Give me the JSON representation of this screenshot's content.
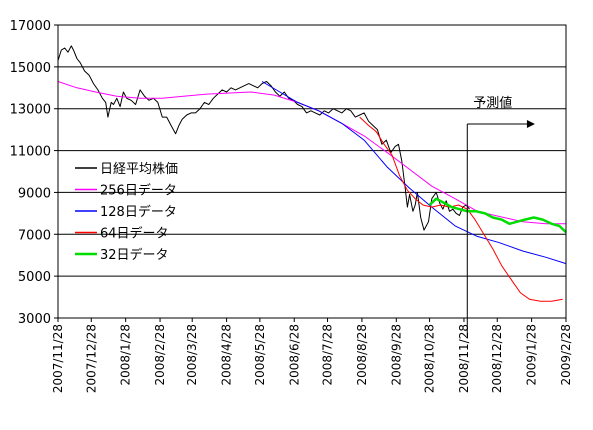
{
  "chart_data": {
    "type": "line",
    "ylim": [
      3000,
      17000
    ],
    "ytick_labels": [
      "3000",
      "5000",
      "7000",
      "9000",
      "11000",
      "13000",
      "15000",
      "17000"
    ],
    "ytick_values": [
      3000,
      5000,
      7000,
      9000,
      11000,
      13000,
      15000,
      17000
    ],
    "grid": "horizontal",
    "xtick_labels": [
      "2007/11/28",
      "2007/12/28",
      "2008/1/28",
      "2008/2/28",
      "2008/3/28",
      "2008/4/28",
      "2008/5/28",
      "2008/6/28",
      "2008/7/28",
      "2008/8/28",
      "2008/9/28",
      "2008/10/28",
      "2008/11/28",
      "2008/12/28",
      "2009/1/28",
      "2009/2/28"
    ],
    "xtick_values": [
      "2007-11-28",
      "2007-12-28",
      "2008-01-28",
      "2008-02-28",
      "2008-03-28",
      "2008-04-28",
      "2008-05-28",
      "2008-06-28",
      "2008-07-28",
      "2008-08-28",
      "2008-09-28",
      "2008-10-28",
      "2008-11-28",
      "2008-12-28",
      "2009-01-28",
      "2009-02-28"
    ],
    "xlim": [
      "2007-11-28",
      "2009-02-28"
    ],
    "legend_position": "left",
    "annotation": {
      "label": "予測値",
      "x": "2008-12-01",
      "arrow_to": "2009-01-31"
    },
    "series": [
      {
        "name": "日経平均株価",
        "color": "#000000",
        "x": [
          "2007-11-28",
          "2007-12-01",
          "2007-12-04",
          "2007-12-07",
          "2007-12-10",
          "2007-12-12",
          "2007-12-15",
          "2007-12-18",
          "2007-12-22",
          "2007-12-26",
          "2007-12-30",
          "2008-01-03",
          "2008-01-07",
          "2008-01-10",
          "2008-01-12",
          "2008-01-15",
          "2008-01-17",
          "2008-01-20",
          "2008-01-23",
          "2008-01-26",
          "2008-01-29",
          "2008-02-02",
          "2008-02-06",
          "2008-02-10",
          "2008-02-14",
          "2008-02-18",
          "2008-02-22",
          "2008-02-26",
          "2008-03-01",
          "2008-03-05",
          "2008-03-09",
          "2008-03-13",
          "2008-03-16",
          "2008-03-19",
          "2008-03-23",
          "2008-03-27",
          "2008-03-31",
          "2008-04-04",
          "2008-04-08",
          "2008-04-12",
          "2008-04-16",
          "2008-04-20",
          "2008-04-24",
          "2008-04-28",
          "2008-05-02",
          "2008-05-06",
          "2008-05-10",
          "2008-05-14",
          "2008-05-18",
          "2008-05-22",
          "2008-05-26",
          "2008-05-30",
          "2008-06-03",
          "2008-06-07",
          "2008-06-11",
          "2008-06-15",
          "2008-06-19",
          "2008-06-23",
          "2008-06-27",
          "2008-07-01",
          "2008-07-05",
          "2008-07-09",
          "2008-07-13",
          "2008-07-17",
          "2008-07-21",
          "2008-07-25",
          "2008-07-29",
          "2008-08-02",
          "2008-08-06",
          "2008-08-10",
          "2008-08-14",
          "2008-08-18",
          "2008-08-22",
          "2008-08-26",
          "2008-08-30",
          "2008-09-03",
          "2008-09-07",
          "2008-09-11",
          "2008-09-15",
          "2008-09-19",
          "2008-09-23",
          "2008-09-27",
          "2008-09-30",
          "2008-10-03",
          "2008-10-06",
          "2008-10-08",
          "2008-10-10",
          "2008-10-13",
          "2008-10-15",
          "2008-10-17",
          "2008-10-20",
          "2008-10-23",
          "2008-10-27",
          "2008-10-30",
          "2008-11-03",
          "2008-11-06",
          "2008-11-09",
          "2008-11-12",
          "2008-11-15",
          "2008-11-18",
          "2008-11-21",
          "2008-11-24",
          "2008-11-27",
          "2008-11-30",
          "2008-12-03"
        ],
        "values": [
          15300,
          15800,
          15900,
          15700,
          16000,
          15800,
          15400,
          15200,
          14800,
          14600,
          14200,
          13900,
          13500,
          13300,
          12600,
          13300,
          13200,
          13500,
          13100,
          13800,
          13500,
          13400,
          13200,
          13900,
          13600,
          13400,
          13500,
          13300,
          12600,
          12600,
          12200,
          11800,
          12200,
          12500,
          12700,
          12800,
          12800,
          13000,
          13300,
          13200,
          13500,
          13700,
          13900,
          13800,
          14000,
          13900,
          14000,
          14100,
          14200,
          14100,
          14000,
          14200,
          14300,
          14100,
          13800,
          13600,
          13800,
          13500,
          13400,
          13200,
          13100,
          12800,
          12900,
          12800,
          12700,
          12900,
          12800,
          13000,
          12900,
          12800,
          13000,
          12900,
          12600,
          12700,
          12800,
          12400,
          12200,
          12000,
          11300,
          11500,
          10900,
          11200,
          11300,
          10500,
          9200,
          8300,
          8900,
          8100,
          8400,
          9000,
          7800,
          7200,
          7600,
          8700,
          9000,
          8500,
          8200,
          8600,
          8100,
          8200,
          8000,
          7900,
          8300,
          8400,
          8200
        ]
      },
      {
        "name": "256日データ",
        "color": "#ff00ff",
        "x": [
          "2007-11-28",
          "2007-12-15",
          "2008-01-01",
          "2008-01-20",
          "2008-02-10",
          "2008-03-01",
          "2008-03-20",
          "2008-04-10",
          "2008-05-01",
          "2008-05-20",
          "2008-06-10",
          "2008-07-01",
          "2008-07-20",
          "2008-08-10",
          "2008-08-30",
          "2008-09-20",
          "2008-10-10",
          "2008-10-30",
          "2008-11-20",
          "2008-12-10",
          "2008-12-30",
          "2009-01-20",
          "2009-02-10",
          "2009-02-28"
        ],
        "values": [
          14300,
          14000,
          13800,
          13600,
          13500,
          13500,
          13600,
          13700,
          13750,
          13800,
          13650,
          13300,
          12900,
          12300,
          11700,
          10900,
          10100,
          9300,
          8700,
          8100,
          7850,
          7600,
          7500,
          7500
        ]
      },
      {
        "name": "128日データ",
        "color": "#0000ff",
        "x": [
          "2008-05-30",
          "2008-06-15",
          "2008-07-01",
          "2008-07-20",
          "2008-08-10",
          "2008-08-30",
          "2008-09-20",
          "2008-10-10",
          "2008-10-30",
          "2008-11-20",
          "2008-12-10",
          "2008-12-30",
          "2009-01-20",
          "2009-02-10",
          "2009-02-28"
        ],
        "values": [
          14300,
          13800,
          13300,
          12900,
          12300,
          11500,
          10200,
          9200,
          8300,
          7400,
          6900,
          6600,
          6200,
          5900,
          5600
        ]
      },
      {
        "name": "64日データ",
        "color": "#ff0000",
        "x": [
          "2008-08-26",
          "2008-09-03",
          "2008-09-10",
          "2008-09-17",
          "2008-09-24",
          "2008-10-01",
          "2008-10-08",
          "2008-10-15",
          "2008-10-22",
          "2008-10-30",
          "2008-11-07",
          "2008-11-15",
          "2008-11-23",
          "2008-12-01",
          "2008-12-08",
          "2008-12-16",
          "2008-12-24",
          "2009-01-01",
          "2009-01-10",
          "2009-01-18",
          "2009-01-26",
          "2009-02-05",
          "2009-02-15",
          "2009-02-25"
        ],
        "values": [
          12600,
          12200,
          11900,
          11300,
          10800,
          9800,
          9100,
          8700,
          8400,
          8300,
          8400,
          8300,
          8400,
          8200,
          7700,
          7000,
          6300,
          5500,
          4800,
          4200,
          3900,
          3800,
          3800,
          3900
        ]
      },
      {
        "name": "32日データ",
        "color": "#00dd00",
        "x": [
          "2008-10-28",
          "2008-11-03",
          "2008-11-10",
          "2008-11-17",
          "2008-11-24",
          "2008-12-01",
          "2008-12-09",
          "2008-12-17",
          "2008-12-24",
          "2009-01-01",
          "2009-01-08",
          "2009-01-15",
          "2009-01-22",
          "2009-01-30",
          "2009-02-07",
          "2009-02-15",
          "2009-02-22",
          "2009-02-28"
        ],
        "values": [
          8400,
          8700,
          8500,
          8300,
          8200,
          8100,
          8100,
          8000,
          7800,
          7700,
          7500,
          7600,
          7700,
          7800,
          7700,
          7500,
          7400,
          7100
        ]
      }
    ]
  }
}
